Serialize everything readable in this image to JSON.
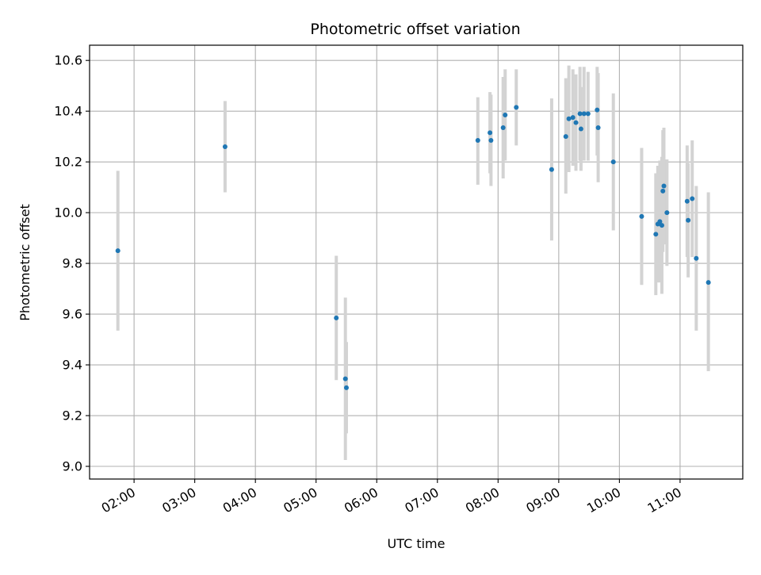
{
  "chart_data": {
    "type": "scatter",
    "title": "Photometric offset variation",
    "xlabel": "UTC time",
    "ylabel": "Photometric offset",
    "x_tick_labels": [
      "02:00",
      "03:00",
      "04:00",
      "05:00",
      "06:00",
      "07:00",
      "08:00",
      "09:00",
      "10:00",
      "11:00"
    ],
    "y_tick_labels": [
      "9.0",
      "9.2",
      "9.4",
      "9.6",
      "9.8",
      "10.0",
      "10.2",
      "10.4",
      "10.6"
    ],
    "x_ticks": [
      "02:00",
      "03:00",
      "04:00",
      "05:00",
      "06:00",
      "07:00",
      "08:00",
      "09:00",
      "10:00",
      "11:00"
    ],
    "y_ticks": [
      9.0,
      9.2,
      9.4,
      9.6,
      9.8,
      10.0,
      10.2,
      10.4,
      10.6
    ],
    "xlim": [
      "01:16",
      "12:02"
    ],
    "ylim": [
      8.95,
      10.66
    ],
    "grid": true,
    "colors": {
      "marker": "#1f77b4",
      "errorbar": "#d3d3d3",
      "grid": "#b0b0b0"
    },
    "points": [
      {
        "x": "01:44",
        "y": 9.85,
        "err_low": 9.535,
        "err_high": 10.165
      },
      {
        "x": "03:30",
        "y": 10.26,
        "err_low": 10.08,
        "err_high": 10.44
      },
      {
        "x": "05:20",
        "y": 9.585,
        "err_low": 9.34,
        "err_high": 9.83
      },
      {
        "x": "05:29",
        "y": 9.345,
        "err_low": 9.025,
        "err_high": 9.665
      },
      {
        "x": "05:30",
        "y": 9.31,
        "err_low": 9.13,
        "err_high": 9.49
      },
      {
        "x": "07:40",
        "y": 10.285,
        "err_low": 10.11,
        "err_high": 10.455
      },
      {
        "x": "07:52",
        "y": 10.315,
        "err_low": 10.155,
        "err_high": 10.475
      },
      {
        "x": "07:53",
        "y": 10.285,
        "err_low": 10.105,
        "err_high": 10.465
      },
      {
        "x": "08:05",
        "y": 10.335,
        "err_low": 10.135,
        "err_high": 10.535
      },
      {
        "x": "08:07",
        "y": 10.385,
        "err_low": 10.205,
        "err_high": 10.565
      },
      {
        "x": "08:18",
        "y": 10.415,
        "err_low": 10.265,
        "err_high": 10.565
      },
      {
        "x": "08:53",
        "y": 10.17,
        "err_low": 9.89,
        "err_high": 10.45
      },
      {
        "x": "09:07",
        "y": 10.3,
        "err_low": 10.075,
        "err_high": 10.53
      },
      {
        "x": "09:10",
        "y": 10.37,
        "err_low": 10.16,
        "err_high": 10.58
      },
      {
        "x": "09:14",
        "y": 10.375,
        "err_low": 10.185,
        "err_high": 10.565
      },
      {
        "x": "09:17",
        "y": 10.355,
        "err_low": 10.165,
        "err_high": 10.545
      },
      {
        "x": "09:21",
        "y": 10.39,
        "err_low": 10.205,
        "err_high": 10.575
      },
      {
        "x": "09:22",
        "y": 10.33,
        "err_low": 10.165,
        "err_high": 10.495
      },
      {
        "x": "09:25",
        "y": 10.39,
        "err_low": 10.205,
        "err_high": 10.575
      },
      {
        "x": "09:29",
        "y": 10.39,
        "err_low": 10.205,
        "err_high": 10.555
      },
      {
        "x": "09:38",
        "y": 10.405,
        "err_low": 10.225,
        "err_high": 10.575
      },
      {
        "x": "09:39",
        "y": 10.335,
        "err_low": 10.12,
        "err_high": 10.55
      },
      {
        "x": "09:54",
        "y": 10.2,
        "err_low": 9.93,
        "err_high": 10.47
      },
      {
        "x": "10:22",
        "y": 9.985,
        "err_low": 9.715,
        "err_high": 10.255
      },
      {
        "x": "10:36",
        "y": 9.915,
        "err_low": 9.675,
        "err_high": 10.155
      },
      {
        "x": "10:38",
        "y": 9.955,
        "err_low": 9.725,
        "err_high": 10.185
      },
      {
        "x": "10:40",
        "y": 9.965,
        "err_low": 9.725,
        "err_high": 10.205
      },
      {
        "x": "10:42",
        "y": 9.95,
        "err_low": 9.68,
        "err_high": 10.22
      },
      {
        "x": "10:43",
        "y": 10.085,
        "err_low": 9.845,
        "err_high": 10.325
      },
      {
        "x": "10:44",
        "y": 10.105,
        "err_low": 9.875,
        "err_high": 10.335
      },
      {
        "x": "10:47",
        "y": 10.0,
        "err_low": 9.79,
        "err_high": 10.21
      },
      {
        "x": "11:07",
        "y": 10.045,
        "err_low": 9.825,
        "err_high": 10.265
      },
      {
        "x": "11:08",
        "y": 9.97,
        "err_low": 9.745,
        "err_high": 10.195
      },
      {
        "x": "11:12",
        "y": 10.055,
        "err_low": 9.825,
        "err_high": 10.285
      },
      {
        "x": "11:16",
        "y": 9.82,
        "err_low": 9.535,
        "err_high": 10.105
      },
      {
        "x": "11:28",
        "y": 9.725,
        "err_low": 9.375,
        "err_high": 10.08
      }
    ]
  }
}
